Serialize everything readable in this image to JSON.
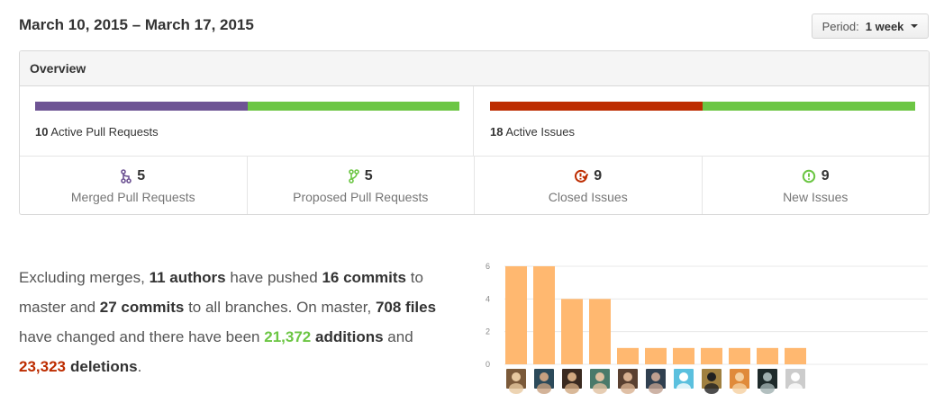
{
  "header": {
    "date_range": "March 10, 2015 – March 17, 2015",
    "period_label": "Period:",
    "period_value": "1 week"
  },
  "overview": {
    "title": "Overview",
    "pull_requests": {
      "count": "10",
      "label": "Active Pull Requests",
      "merged_fraction": 0.5,
      "colors": {
        "merged": "#6e5494",
        "proposed": "#6cc644"
      }
    },
    "issues": {
      "count": "18",
      "label": "Active Issues",
      "closed_fraction": 0.5,
      "colors": {
        "closed": "#bd2c00",
        "new": "#6cc644"
      }
    },
    "stats": [
      {
        "icon": "merged-pr-icon",
        "value": "5",
        "label": "Merged Pull Requests",
        "color": "#6e5494"
      },
      {
        "icon": "proposed-pr-icon",
        "value": "5",
        "label": "Proposed Pull Requests",
        "color": "#6cc644"
      },
      {
        "icon": "closed-issue-icon",
        "value": "9",
        "label": "Closed Issues",
        "color": "#bd2c00"
      },
      {
        "icon": "new-issue-icon",
        "value": "9",
        "label": "New Issues",
        "color": "#6cc644"
      }
    ]
  },
  "summary": {
    "p1": "Excluding merges,",
    "authors": "11 authors",
    "p2": "have pushed",
    "commits_master": "16 commits",
    "p3": "to master and",
    "commits_all": "27 commits",
    "p4": "to all branches. On master,",
    "files": "708 files",
    "p5": "have changed and there have been",
    "additions_num": "21,372",
    "additions_word": "additions",
    "p6": "and",
    "deletions_num": "23,323",
    "deletions_word": "deletions",
    "p7": "."
  },
  "chart_data": {
    "type": "bar",
    "title": "",
    "xlabel": "",
    "ylabel": "",
    "ylim": [
      0,
      6
    ],
    "yticks": [
      "0",
      "2",
      "4",
      "6"
    ],
    "values": [
      6,
      6,
      4,
      4,
      1,
      1,
      1,
      1,
      1,
      1,
      1
    ],
    "bar_color": "#ffb870",
    "grid": true
  },
  "avatars": [
    {
      "name": "author-avatar-1",
      "bg": "#7b5a3a",
      "fg": "#e8c9a0"
    },
    {
      "name": "author-avatar-2",
      "bg": "#2c4a5a",
      "fg": "#c8a080"
    },
    {
      "name": "author-avatar-3",
      "bg": "#3a2a20",
      "fg": "#d0a880"
    },
    {
      "name": "author-avatar-4",
      "bg": "#4a7a6a",
      "fg": "#e0c0a0"
    },
    {
      "name": "author-avatar-5",
      "bg": "#5a4030",
      "fg": "#d8b090"
    },
    {
      "name": "author-avatar-6",
      "bg": "#304050",
      "fg": "#c0a090"
    },
    {
      "name": "author-avatar-7",
      "bg": "#5bc0de",
      "fg": "#ffffff"
    },
    {
      "name": "author-avatar-8",
      "bg": "#a08040",
      "fg": "#202020"
    },
    {
      "name": "author-avatar-9",
      "bg": "#e08a3a",
      "fg": "#f5d0a0"
    },
    {
      "name": "author-avatar-10",
      "bg": "#1e2a2a",
      "fg": "#a0b0b0"
    },
    {
      "name": "author-avatar-11",
      "bg": "#cccccc",
      "fg": "#ffffff"
    }
  ]
}
